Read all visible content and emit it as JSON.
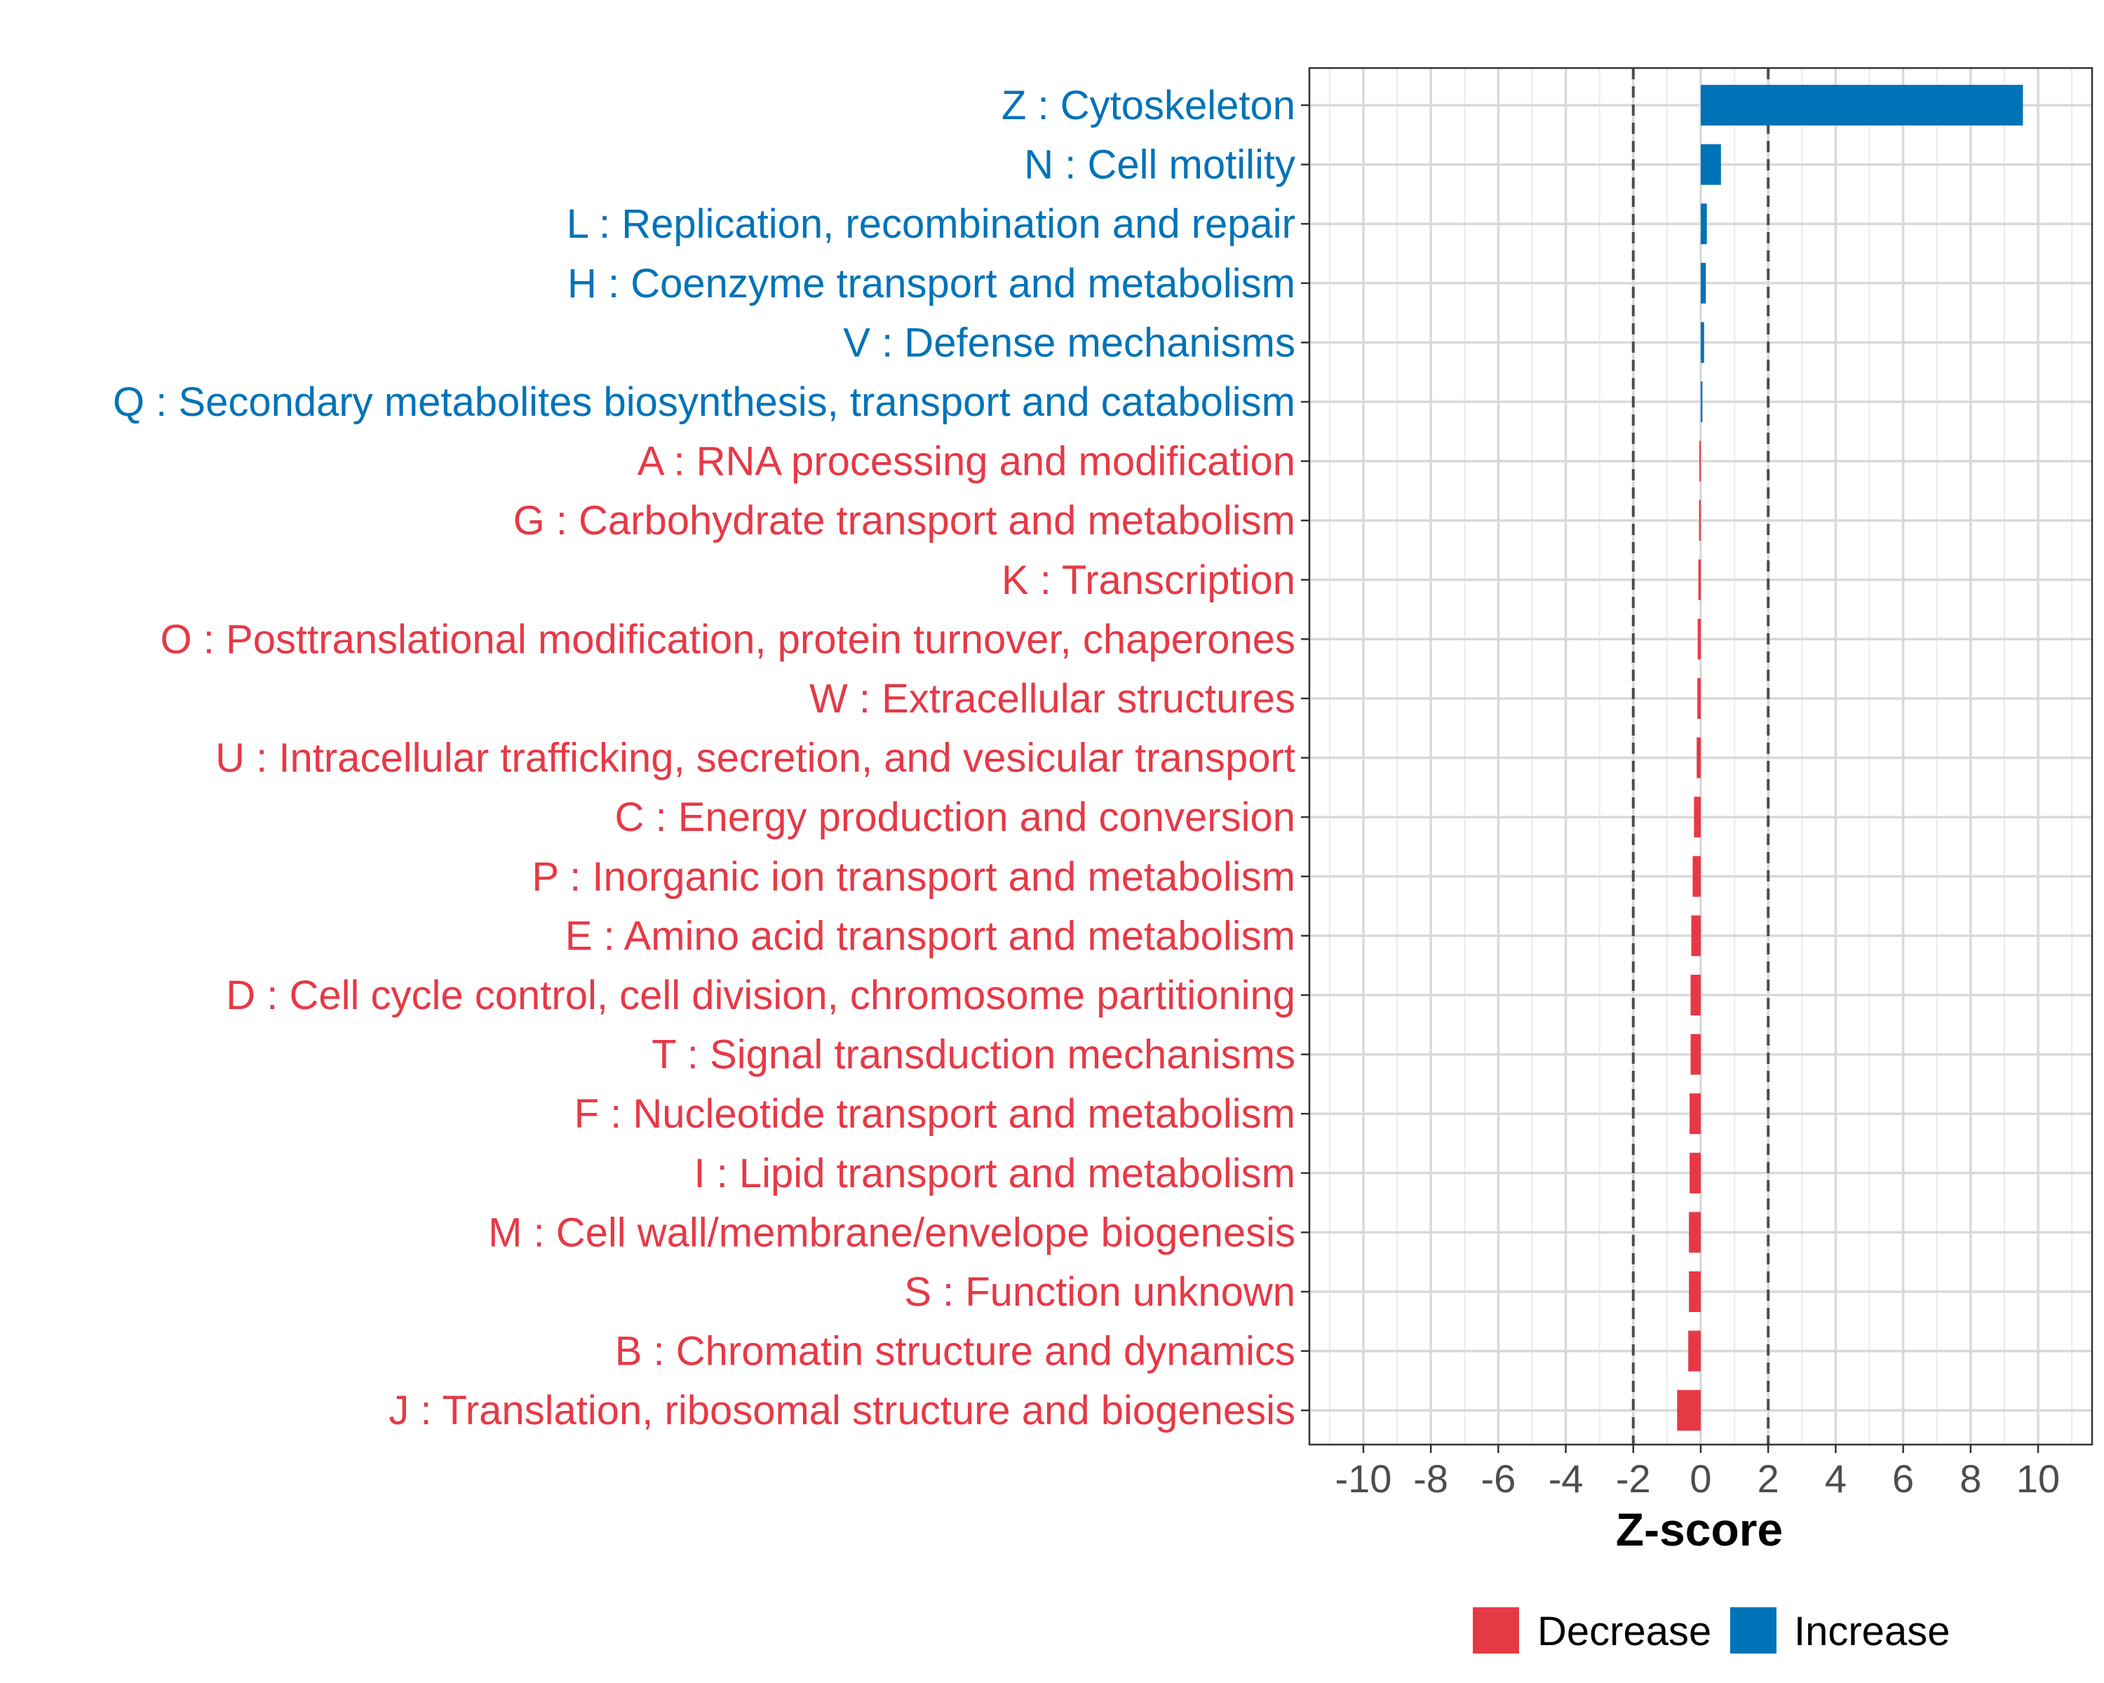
{
  "chart_data": {
    "type": "bar",
    "orientation": "horizontal",
    "title": "",
    "xlabel": "Z-score",
    "ylabel": "",
    "xlim": [
      -11.6,
      11.6
    ],
    "x_ticks": [
      -10,
      -8,
      -6,
      -4,
      -2,
      0,
      2,
      4,
      6,
      8,
      10
    ],
    "x_tick_labels": [
      "-10",
      "-8",
      "-6",
      "-4",
      "-2",
      "0",
      "2",
      "4",
      "6",
      "8",
      "10"
    ],
    "reference_lines": [
      -2,
      2
    ],
    "grid": true,
    "legend_position": "bottom",
    "colors": {
      "Decrease": "#e63946",
      "Increase": "#0073b8"
    },
    "categories": [
      {
        "label": "Z : Cytoskeleton",
        "value": 9.55,
        "direction": "Increase"
      },
      {
        "label": "N : Cell motility",
        "value": 0.6,
        "direction": "Increase"
      },
      {
        "label": "L : Replication, recombination and repair",
        "value": 0.18,
        "direction": "Increase"
      },
      {
        "label": "H : Coenzyme transport and metabolism",
        "value": 0.15,
        "direction": "Increase"
      },
      {
        "label": "V : Defense mechanisms",
        "value": 0.1,
        "direction": "Increase"
      },
      {
        "label": "Q : Secondary metabolites biosynthesis, transport and catabolism",
        "value": 0.05,
        "direction": "Increase"
      },
      {
        "label": "A : RNA processing and modification",
        "value": -0.03,
        "direction": "Decrease"
      },
      {
        "label": "G : Carbohydrate transport and metabolism",
        "value": -0.05,
        "direction": "Decrease"
      },
      {
        "label": "K : Transcription",
        "value": -0.07,
        "direction": "Decrease"
      },
      {
        "label": "O : Posttranslational modification, protein turnover, chaperones",
        "value": -0.09,
        "direction": "Decrease"
      },
      {
        "label": "W : Extracellular structures",
        "value": -0.1,
        "direction": "Decrease"
      },
      {
        "label": "U : Intracellular trafficking, secretion, and vesicular transport",
        "value": -0.12,
        "direction": "Decrease"
      },
      {
        "label": "C : Energy production and conversion",
        "value": -0.2,
        "direction": "Decrease"
      },
      {
        "label": "P : Inorganic ion transport and metabolism",
        "value": -0.24,
        "direction": "Decrease"
      },
      {
        "label": "E : Amino acid transport and metabolism",
        "value": -0.28,
        "direction": "Decrease"
      },
      {
        "label": "D : Cell cycle control, cell division, chromosome partitioning",
        "value": -0.3,
        "direction": "Decrease"
      },
      {
        "label": "T : Signal transduction mechanisms",
        "value": -0.3,
        "direction": "Decrease"
      },
      {
        "label": "F : Nucleotide transport and metabolism",
        "value": -0.33,
        "direction": "Decrease"
      },
      {
        "label": "I : Lipid transport and metabolism",
        "value": -0.33,
        "direction": "Decrease"
      },
      {
        "label": "M : Cell wall/membrane/envelope biogenesis",
        "value": -0.35,
        "direction": "Decrease"
      },
      {
        "label": "S : Function unknown",
        "value": -0.35,
        "direction": "Decrease"
      },
      {
        "label": "B : Chromatin structure and dynamics",
        "value": -0.37,
        "direction": "Decrease"
      },
      {
        "label": "J : Translation, ribosomal structure and biogenesis",
        "value": -0.7,
        "direction": "Decrease"
      }
    ],
    "legend": [
      {
        "label": "Decrease",
        "color": "#e63946"
      },
      {
        "label": "Increase",
        "color": "#0073b8"
      }
    ]
  }
}
